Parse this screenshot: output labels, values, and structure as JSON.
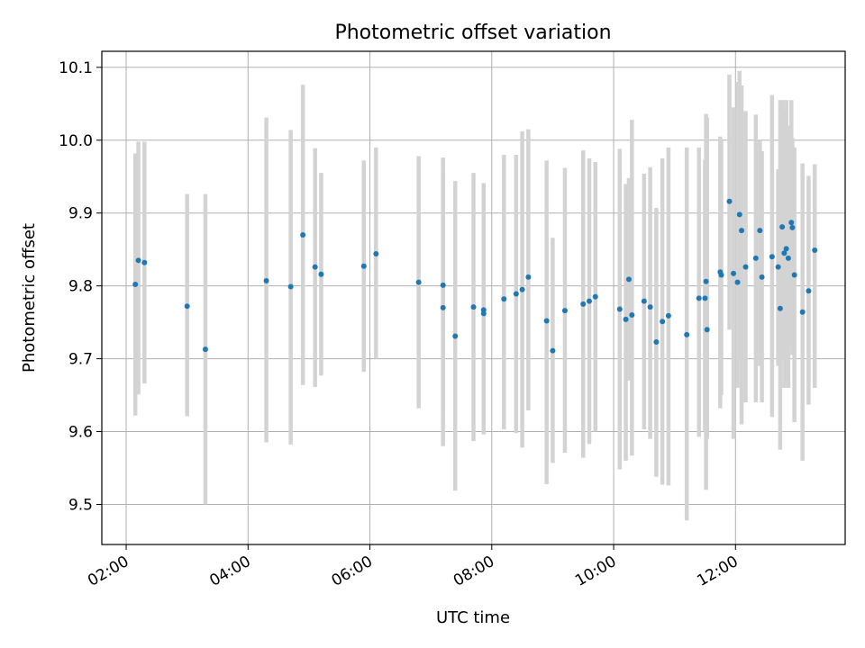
{
  "chart_data": {
    "type": "scatter",
    "title": "Photometric offset variation",
    "xlabel": "UTC time",
    "ylabel": "Photometric offset",
    "x_unit": "UTC time of day",
    "x_ticks": [
      "02:00",
      "04:00",
      "06:00",
      "08:00",
      "10:00",
      "12:00"
    ],
    "y_ticks": [
      "9.5",
      "9.6",
      "9.7",
      "9.8",
      "9.9",
      "10.0",
      "10.1"
    ],
    "xlim": [
      "01:36",
      "13:48"
    ],
    "ylim": [
      9.445,
      10.122
    ],
    "grid": true,
    "point_color": "#1f77b4",
    "errorbar_color": "#d3d3d3",
    "series": [
      {
        "x": [
          "02:09",
          "02:12",
          "02:18",
          "03:00",
          "03:18",
          "04:18",
          "04:42",
          "04:54",
          "05:06",
          "05:12",
          "05:54",
          "06:06",
          "06:48",
          "07:12",
          "07:12",
          "07:24",
          "07:42",
          "07:52",
          "07:52",
          "08:12",
          "08:24",
          "08:30",
          "08:36",
          "08:54",
          "09:00",
          "09:12",
          "09:30",
          "09:36",
          "09:42",
          "10:06",
          "10:12",
          "10:15",
          "10:18",
          "10:30",
          "10:36",
          "10:42",
          "10:48",
          "10:54",
          "11:12",
          "11:24",
          "11:30",
          "11:31",
          "11:32",
          "11:45",
          "11:46",
          "11:54",
          "11:58",
          "12:02",
          "12:04",
          "12:06",
          "12:10",
          "12:20",
          "12:24",
          "12:26",
          "12:36",
          "12:42",
          "12:44",
          "12:46",
          "12:48",
          "12:50",
          "12:52",
          "12:55",
          "12:56",
          "12:58",
          "13:06",
          "13:12",
          "13:18"
        ],
        "y": [
          9.802,
          9.835,
          9.832,
          9.772,
          9.713,
          9.807,
          9.799,
          9.87,
          9.826,
          9.816,
          9.827,
          9.844,
          9.805,
          9.801,
          9.77,
          9.731,
          9.771,
          9.767,
          9.762,
          9.782,
          9.789,
          9.795,
          9.812,
          9.752,
          9.711,
          9.766,
          9.775,
          9.779,
          9.785,
          9.768,
          9.754,
          9.809,
          9.76,
          9.779,
          9.771,
          9.723,
          9.751,
          9.759,
          9.733,
          9.783,
          9.783,
          9.806,
          9.74,
          9.819,
          9.815,
          9.916,
          9.817,
          9.805,
          9.898,
          9.876,
          9.826,
          9.838,
          9.876,
          9.812,
          9.84,
          9.826,
          9.769,
          9.881,
          9.845,
          9.851,
          9.838,
          9.887,
          9.88,
          9.815,
          9.764,
          9.793,
          9.849
        ],
        "yerr_low": [
          9.622,
          9.651,
          9.666,
          9.621,
          9.5,
          9.585,
          9.582,
          9.664,
          9.661,
          9.677,
          9.682,
          9.7,
          9.632,
          9.627,
          9.58,
          9.519,
          9.587,
          9.596,
          9.622,
          9.603,
          9.598,
          9.578,
          9.629,
          9.528,
          9.557,
          9.571,
          9.564,
          9.583,
          9.6,
          9.548,
          9.56,
          9.67,
          9.567,
          9.603,
          9.59,
          9.538,
          9.527,
          9.526,
          9.478,
          9.593,
          9.6,
          9.52,
          9.59,
          9.632,
          9.65,
          9.74,
          9.59,
          9.66,
          9.7,
          9.61,
          9.64,
          9.64,
          9.69,
          9.64,
          9.62,
          9.69,
          9.575,
          9.7,
          9.66,
          9.67,
          9.66,
          9.72,
          9.705,
          9.613,
          9.56,
          9.637,
          9.66
        ],
        "yerr_high": [
          9.982,
          9.998,
          9.998,
          9.926,
          9.926,
          10.031,
          10.014,
          10.076,
          9.989,
          9.955,
          9.972,
          9.99,
          9.978,
          9.976,
          9.96,
          9.944,
          9.955,
          9.941,
          9.902,
          9.98,
          9.98,
          10.012,
          10.015,
          9.972,
          9.866,
          9.962,
          9.986,
          9.975,
          9.97,
          9.988,
          9.94,
          9.948,
          10.028,
          9.954,
          9.963,
          9.907,
          9.975,
          9.99,
          9.99,
          9.99,
          9.973,
          10.036,
          10.031,
          10.005,
          10.0,
          10.09,
          10.045,
          10.08,
          10.095,
          10.075,
          10.04,
          10.035,
          10.0,
          9.985,
          10.062,
          9.96,
          10.055,
          10.055,
          10.04,
          10.055,
          10.02,
          10.055,
          10.003,
          9.99,
          9.968,
          9.951,
          9.967
        ]
      }
    ]
  }
}
